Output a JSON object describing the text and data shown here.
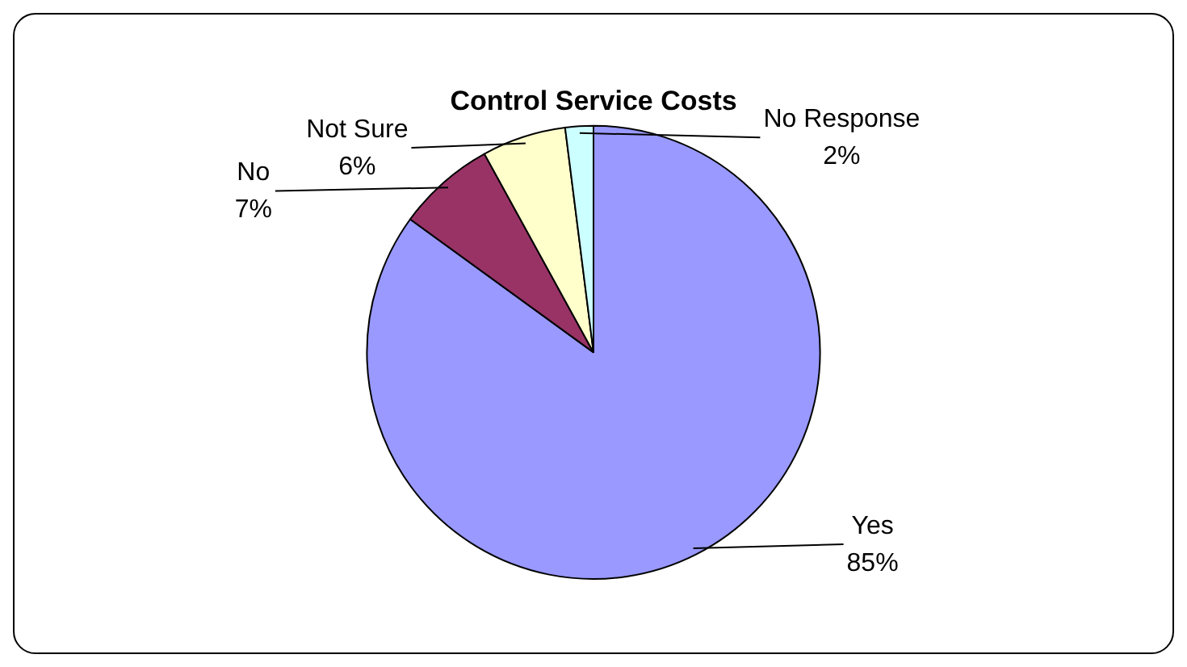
{
  "chart_data": {
    "type": "pie",
    "title": "Control Service Costs",
    "categories": [
      "Yes",
      "No",
      "Not Sure",
      "No Response"
    ],
    "values": [
      85,
      7,
      6,
      2
    ],
    "colors": [
      "#9999ff",
      "#993366",
      "#ffffcc",
      "#ccffff"
    ],
    "value_labels": [
      "85%",
      "7%",
      "6%",
      "2%"
    ],
    "legend": false
  }
}
